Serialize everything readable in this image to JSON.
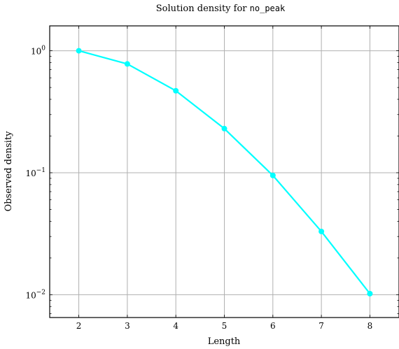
{
  "chart_data": {
    "type": "line",
    "title_prefix": "Solution density for ",
    "title_code": "no_peak",
    "xlabel": "Length",
    "ylabel": "Observed density",
    "x": [
      2,
      3,
      4,
      5,
      6,
      7,
      8
    ],
    "series": [
      {
        "color": "#00ffff",
        "values": [
          1.0,
          0.78,
          0.47,
          0.23,
          0.095,
          0.033,
          0.0102
        ]
      }
    ],
    "xlim": [
      1.4,
      8.6
    ],
    "ylim": [
      0.0065,
      1.6
    ],
    "yscale": "log",
    "xticks": [
      2,
      3,
      4,
      5,
      6,
      7,
      8
    ],
    "yticks": [
      {
        "value": 1,
        "base": "10",
        "exp": "0"
      },
      {
        "value": 0.1,
        "base": "10",
        "exp": "−1"
      },
      {
        "value": 0.01,
        "base": "10",
        "exp": "−2"
      }
    ],
    "grid": true
  }
}
